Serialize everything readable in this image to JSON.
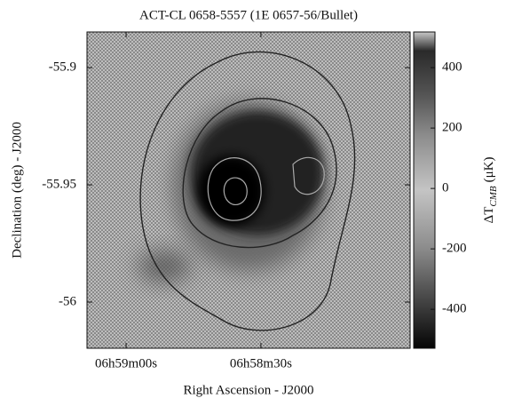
{
  "chart_data": {
    "type": "heatmap",
    "title": "ACT-CL 0658-5557 (1E 0657-56/Bullet)",
    "x_label": "Right Ascension - J2000",
    "y_label": "Declination (deg) - J2000",
    "xlim": [
      25148.7,
      25076.8
    ],
    "xticks": [
      {
        "value": 25140,
        "label": "06h59m00s"
      },
      {
        "value": 25110,
        "label": "06h58m30s"
      }
    ],
    "ylim": [
      -56.0197,
      -55.8848
    ],
    "yticks": [
      -55.9,
      -55.95,
      -56
    ],
    "colorbar": {
      "label_main": "ΔT",
      "label_sub": "CMB",
      "label_unit": "(μK)",
      "lim": [
        -529,
        518
      ],
      "ticks": [
        400,
        200,
        0,
        -200,
        -400
      ]
    }
  }
}
